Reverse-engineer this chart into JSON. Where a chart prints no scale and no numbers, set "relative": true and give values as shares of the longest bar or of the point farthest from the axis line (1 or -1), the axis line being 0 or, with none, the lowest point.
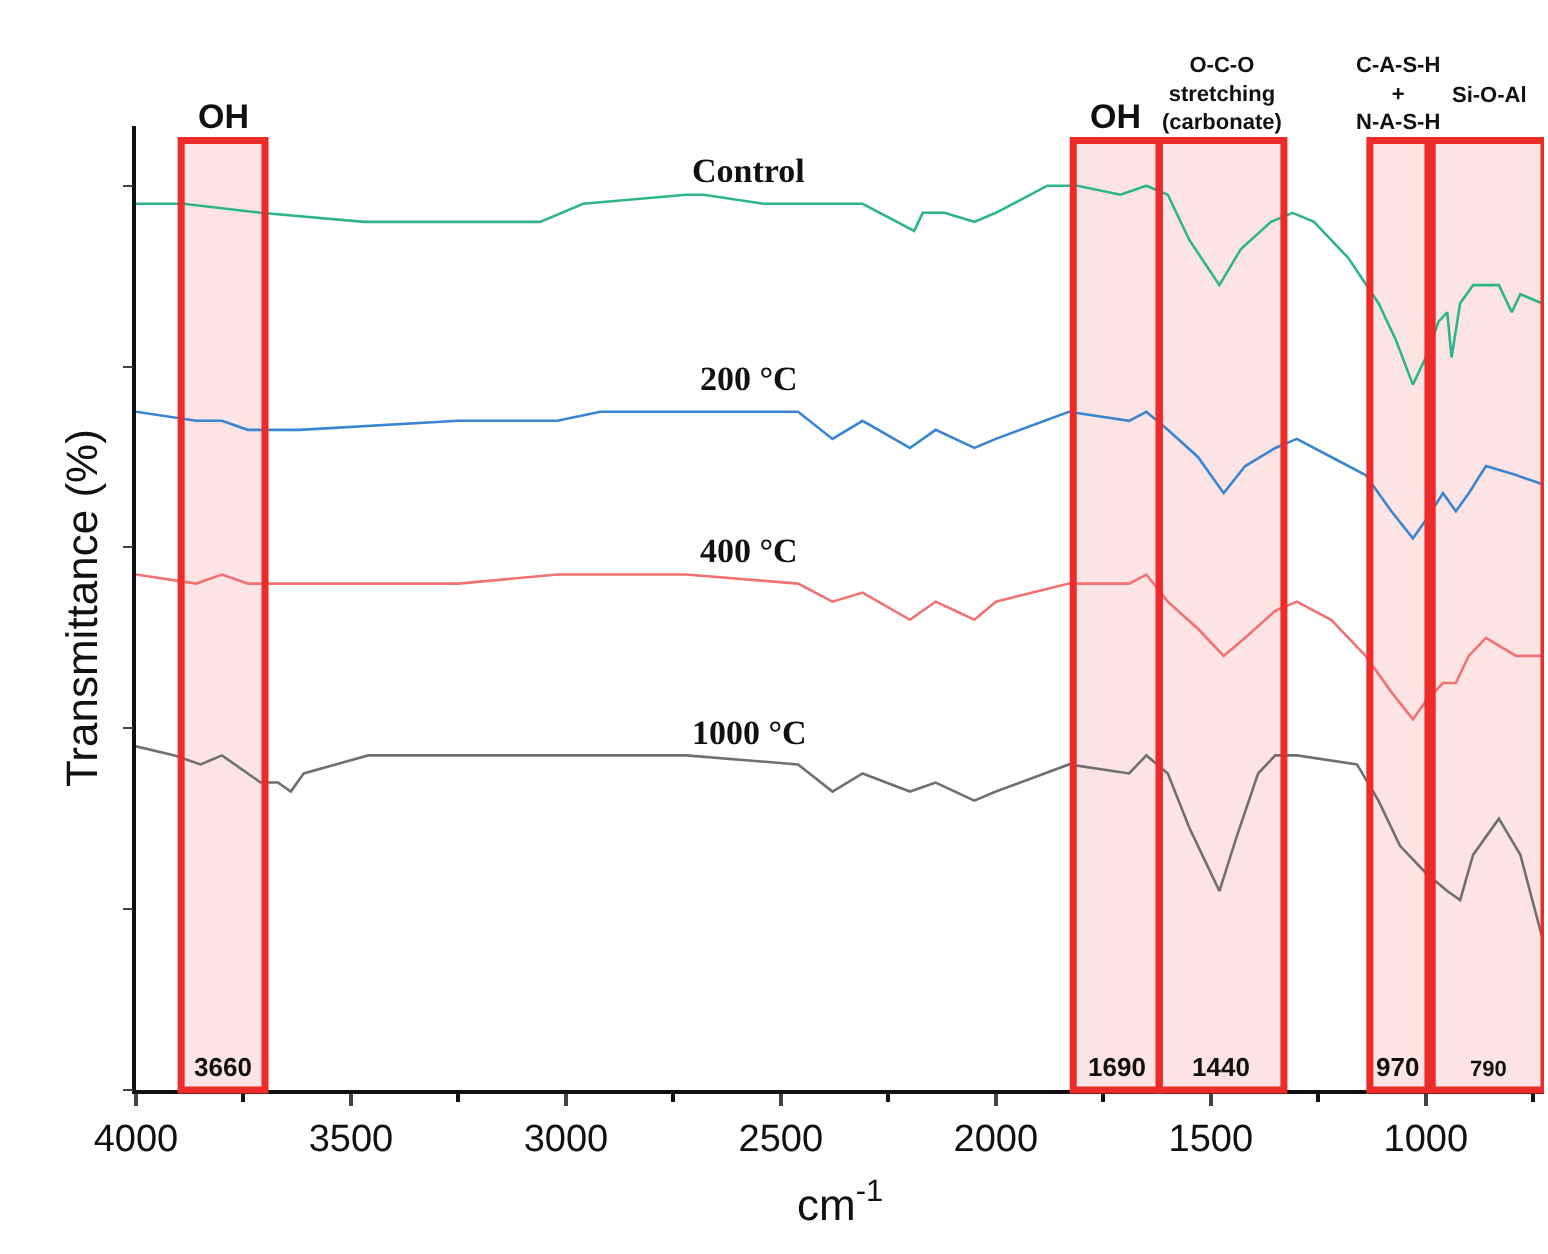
{
  "chart_data": {
    "type": "line",
    "relative": true,
    "xlabel": "cm$^{-1}$",
    "ylabel": "Transmittance (%)",
    "xlim": [
      4000,
      725
    ],
    "xticks": [
      4000,
      3500,
      3000,
      2500,
      2000,
      1500,
      1000
    ],
    "tick_labels": "x",
    "grid": false,
    "legend": false,
    "marker": "none",
    "line_style": "solid",
    "series": [
      {
        "name": "Control",
        "color": "#2fb58a",
        "x": [
          4000,
          3890,
          3710,
          3470,
          3060,
          2960,
          2720,
          2680,
          2540,
          2440,
          2370,
          2310,
          2190,
          2170,
          2120,
          2050,
          2000,
          1880,
          1810,
          1710,
          1650,
          1600,
          1550,
          1480,
          1430,
          1360,
          1310,
          1260,
          1180,
          1110,
          1070,
          1030,
          1000,
          970,
          950,
          940,
          920,
          890,
          830,
          800,
          780,
          730
        ],
        "values": [
          0.98,
          0.98,
          0.97,
          0.96,
          0.96,
          0.98,
          0.99,
          0.99,
          0.98,
          0.98,
          0.98,
          0.98,
          0.95,
          0.97,
          0.97,
          0.96,
          0.97,
          1.0,
          1.0,
          0.99,
          1.0,
          0.99,
          0.94,
          0.89,
          0.93,
          0.96,
          0.97,
          0.96,
          0.92,
          0.87,
          0.83,
          0.78,
          0.81,
          0.85,
          0.86,
          0.81,
          0.87,
          0.89,
          0.89,
          0.86,
          0.88,
          0.87
        ]
      },
      {
        "name": "200 °C",
        "color": "#3a85d0",
        "x": [
          4000,
          3860,
          3800,
          3740,
          3620,
          3250,
          3020,
          2920,
          2720,
          2460,
          2380,
          2310,
          2200,
          2140,
          2050,
          2000,
          1830,
          1690,
          1650,
          1600,
          1530,
          1470,
          1420,
          1350,
          1300,
          1220,
          1140,
          1080,
          1030,
          1000,
          960,
          930,
          900,
          860,
          790,
          730
        ],
        "values": [
          0.75,
          0.74,
          0.74,
          0.73,
          0.73,
          0.74,
          0.74,
          0.75,
          0.75,
          0.75,
          0.72,
          0.74,
          0.71,
          0.73,
          0.71,
          0.72,
          0.75,
          0.74,
          0.75,
          0.73,
          0.7,
          0.66,
          0.69,
          0.71,
          0.72,
          0.7,
          0.68,
          0.64,
          0.61,
          0.63,
          0.66,
          0.64,
          0.66,
          0.69,
          0.68,
          0.67
        ]
      },
      {
        "name": "400 °C",
        "color": "#f07272",
        "x": [
          4000,
          3860,
          3800,
          3740,
          3620,
          3250,
          3020,
          2920,
          2720,
          2460,
          2380,
          2310,
          2200,
          2140,
          2050,
          2000,
          1830,
          1690,
          1650,
          1600,
          1530,
          1470,
          1420,
          1350,
          1300,
          1220,
          1140,
          1080,
          1030,
          1000,
          960,
          930,
          900,
          860,
          790,
          730
        ],
        "values": [
          0.57,
          0.56,
          0.57,
          0.56,
          0.56,
          0.56,
          0.57,
          0.57,
          0.57,
          0.56,
          0.54,
          0.55,
          0.52,
          0.54,
          0.52,
          0.54,
          0.56,
          0.56,
          0.57,
          0.54,
          0.51,
          0.48,
          0.5,
          0.53,
          0.54,
          0.52,
          0.48,
          0.44,
          0.41,
          0.43,
          0.45,
          0.45,
          0.48,
          0.5,
          0.48,
          0.48
        ]
      },
      {
        "name": "1000 °C",
        "color": "#707070",
        "x": [
          4000,
          3910,
          3850,
          3800,
          3710,
          3670,
          3640,
          3610,
          3460,
          3020,
          2930,
          2720,
          2460,
          2380,
          2310,
          2200,
          2140,
          2050,
          2000,
          1830,
          1690,
          1650,
          1600,
          1550,
          1510,
          1480,
          1440,
          1390,
          1350,
          1300,
          1160,
          1110,
          1060,
          1000,
          950,
          920,
          890,
          830,
          780,
          730
        ],
        "values": [
          0.38,
          0.37,
          0.36,
          0.37,
          0.34,
          0.34,
          0.33,
          0.35,
          0.37,
          0.37,
          0.37,
          0.37,
          0.36,
          0.33,
          0.35,
          0.33,
          0.34,
          0.32,
          0.33,
          0.36,
          0.35,
          0.37,
          0.35,
          0.29,
          0.25,
          0.22,
          0.28,
          0.35,
          0.37,
          0.37,
          0.36,
          0.32,
          0.27,
          0.24,
          0.22,
          0.21,
          0.26,
          0.3,
          0.26,
          0.17
        ]
      }
    ],
    "bands": [
      {
        "axis": "x",
        "from": 3895,
        "to": 3700,
        "label": "OH",
        "color": "#ee2b2b"
      },
      {
        "axis": "x",
        "from": 1820,
        "to": 1620,
        "label": "OH",
        "color": "#ee2b2b"
      },
      {
        "axis": "x",
        "from": 1620,
        "to": 1330,
        "label": "O-C-O\nstretching\n(carbonate)",
        "color": "#ee2b2b"
      },
      {
        "axis": "x",
        "from": 1130,
        "to": 995,
        "label": "C-A-S-H\n+\nN-A-S-H",
        "color": "#ee2b2b"
      },
      {
        "axis": "x",
        "from": 985,
        "to": 725,
        "label": "Si-O-Al",
        "color": "#ee2b2b"
      }
    ],
    "annotations": [
      "3660",
      "1690",
      "1440",
      "970",
      "790"
    ]
  }
}
